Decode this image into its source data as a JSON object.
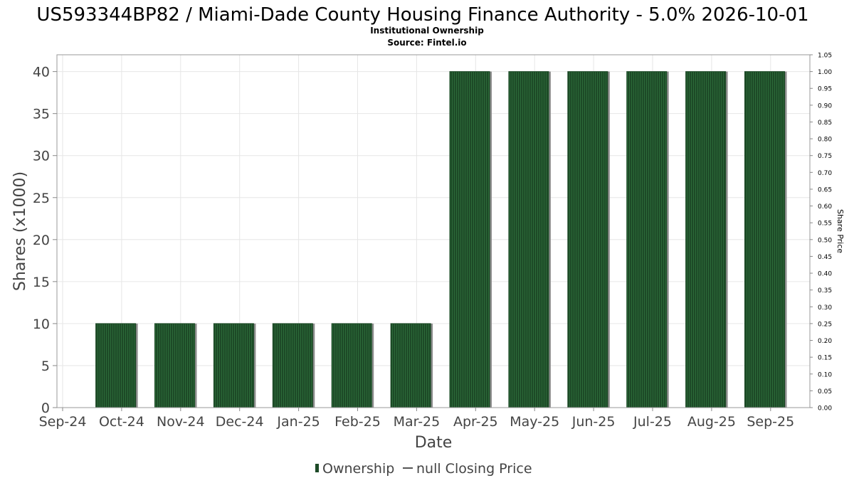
{
  "chart_data": {
    "type": "bar",
    "title": "US593344BP82 / Miami-Dade County Housing Finance Authority - 5.0% 2026-10-01",
    "subtitle": "Institutional Ownership",
    "source": "Source: Fintel.io",
    "xlabel": "Date",
    "ylabel": "Shares (x1000)",
    "y2label": "Share Price",
    "x_tick_labels": [
      "Sep-24",
      "Oct-24",
      "Nov-24",
      "Dec-24",
      "Jan-25",
      "Feb-25",
      "Mar-25",
      "Apr-25",
      "May-25",
      "Jun-25",
      "Jul-25",
      "Aug-25",
      "Sep-25"
    ],
    "y_ticks": [
      0,
      5,
      10,
      15,
      20,
      25,
      30,
      35,
      40
    ],
    "y2_ticks": [
      0.0,
      0.05,
      0.1,
      0.15,
      0.2,
      0.25,
      0.3,
      0.35,
      0.4,
      0.45,
      0.5,
      0.55,
      0.6,
      0.65,
      0.7,
      0.75,
      0.8,
      0.85,
      0.9,
      0.95,
      1.0,
      1.05
    ],
    "ylim": [
      0,
      42
    ],
    "y2lim": [
      0,
      1.05
    ],
    "grid": true,
    "legend_position": "bottom",
    "series": [
      {
        "name": "Ownership",
        "color": "#1d4a27",
        "categories": [
          "Oct-24",
          "Nov-24",
          "Dec-24",
          "Jan-25",
          "Feb-25",
          "Mar-25",
          "Apr-25",
          "May-25",
          "Jun-25",
          "Jul-25",
          "Aug-25",
          "Sep-25"
        ],
        "values": [
          10,
          10,
          10,
          10,
          10,
          10,
          40,
          40,
          40,
          40,
          40,
          40
        ]
      },
      {
        "name": "null Closing Price",
        "color": "#555555",
        "values": []
      }
    ]
  }
}
